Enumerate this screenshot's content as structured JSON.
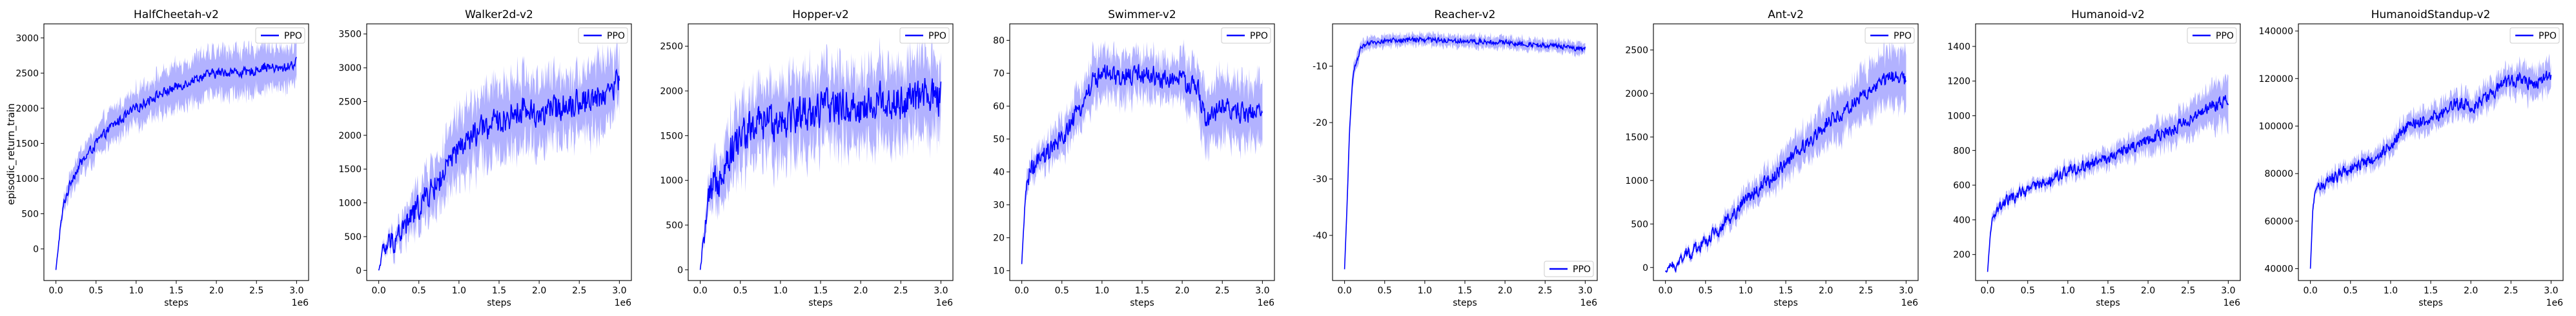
{
  "figure": {
    "ylabel": "episodic_return_train",
    "xlabel": "steps",
    "offset_label": "1e6"
  },
  "chart_data": [
    {
      "type": "line",
      "title": "HalfCheetah-v2",
      "xlabel": "steps",
      "ylabel": "episodic_return_train",
      "xlim": [
        -0.15,
        3.15
      ],
      "ylim": [
        -450,
        3200
      ],
      "xticks": [
        "0.0",
        "0.5",
        "1.0",
        "1.5",
        "2.0",
        "2.5",
        "3.0"
      ],
      "yticks": [
        0,
        500,
        1000,
        1500,
        2000,
        2500,
        3000
      ],
      "legend": "top-right",
      "series": [
        {
          "name": "PPO",
          "color": "#0000ff",
          "x": [
            0,
            0.05,
            0.1,
            0.2,
            0.3,
            0.5,
            0.7,
            1.0,
            1.2,
            1.5,
            1.8,
            2.0,
            2.2,
            2.4,
            2.6,
            2.8,
            3.0
          ],
          "y": [
            -300,
            250,
            650,
            1000,
            1200,
            1500,
            1750,
            2000,
            2150,
            2300,
            2450,
            2500,
            2520,
            2500,
            2600,
            2550,
            2650
          ],
          "band": [
            0,
            60,
            100,
            150,
            180,
            200,
            230,
            250,
            260,
            280,
            300,
            300,
            320,
            300,
            300,
            280,
            250
          ],
          "noise": 90
        }
      ]
    },
    {
      "type": "line",
      "title": "Walker2d-v2",
      "xlabel": "steps",
      "xlim": [
        -0.15,
        3.15
      ],
      "ylim": [
        -150,
        3650
      ],
      "xticks": [
        "0.0",
        "0.5",
        "1.0",
        "1.5",
        "2.0",
        "2.5",
        "3.0"
      ],
      "yticks": [
        0,
        500,
        1000,
        1500,
        2000,
        2500,
        3000,
        3500
      ],
      "legend": "top-right",
      "series": [
        {
          "name": "PPO",
          "color": "#0000ff",
          "x": [
            0,
            0.05,
            0.1,
            0.3,
            0.5,
            0.8,
            1.0,
            1.3,
            1.5,
            1.8,
            2.0,
            2.3,
            2.5,
            2.8,
            3.0
          ],
          "y": [
            0,
            280,
            350,
            600,
            950,
            1400,
            1800,
            2100,
            2200,
            2400,
            2300,
            2450,
            2500,
            2600,
            2800
          ],
          "band": [
            0,
            50,
            80,
            200,
            300,
            400,
            500,
            500,
            500,
            500,
            500,
            450,
            450,
            500,
            400
          ],
          "noise": 260
        }
      ]
    },
    {
      "type": "line",
      "title": "Hopper-v2",
      "xlabel": "steps",
      "xlim": [
        -0.15,
        3.15
      ],
      "ylim": [
        -120,
        2750
      ],
      "xticks": [
        "0.0",
        "0.5",
        "1.0",
        "1.5",
        "2.0",
        "2.5",
        "3.0"
      ],
      "yticks": [
        0,
        500,
        1000,
        1500,
        2000,
        2500
      ],
      "legend": "top-right",
      "series": [
        {
          "name": "PPO",
          "color": "#0000ff",
          "x": [
            0,
            0.05,
            0.1,
            0.2,
            0.3,
            0.5,
            0.8,
            1.0,
            1.3,
            1.5,
            1.8,
            2.0,
            2.3,
            2.5,
            2.8,
            3.0
          ],
          "y": [
            0,
            400,
            700,
            1000,
            1200,
            1500,
            1650,
            1700,
            1750,
            1800,
            1850,
            1800,
            1900,
            1850,
            1950,
            1900
          ],
          "band": [
            0,
            100,
            150,
            250,
            300,
            350,
            400,
            400,
            400,
            400,
            400,
            400,
            400,
            400,
            400,
            400
          ],
          "noise": 280
        }
      ]
    },
    {
      "type": "line",
      "title": "Swimmer-v2",
      "xlabel": "steps",
      "xlim": [
        -0.15,
        3.15
      ],
      "ylim": [
        7,
        85
      ],
      "xticks": [
        "0.0",
        "0.5",
        "1.0",
        "1.5",
        "2.0",
        "2.5",
        "3.0"
      ],
      "yticks": [
        10,
        20,
        30,
        40,
        50,
        60,
        70,
        80
      ],
      "legend": "top-right",
      "series": [
        {
          "name": "PPO",
          "color": "#0000ff",
          "x": [
            0,
            0.05,
            0.1,
            0.3,
            0.5,
            0.7,
            0.9,
            1.0,
            1.2,
            1.5,
            1.8,
            2.0,
            2.2,
            2.3,
            2.5,
            2.7,
            3.0
          ],
          "y": [
            12,
            35,
            40,
            45,
            50,
            58,
            68,
            70,
            68,
            70,
            68,
            68,
            65,
            55,
            60,
            58,
            58
          ],
          "band": [
            0,
            3,
            3,
            4,
            5,
            6,
            7,
            7,
            7,
            6,
            6,
            7,
            8,
            8,
            9,
            9,
            9
          ],
          "noise": 4
        }
      ]
    },
    {
      "type": "line",
      "title": "Reacher-v2",
      "xlabel": "steps",
      "xlim": [
        -0.15,
        3.15
      ],
      "ylim": [
        -48,
        -2.5
      ],
      "xticks": [
        "0.0",
        "0.5",
        "1.0",
        "1.5",
        "2.0",
        "2.5",
        "3.0"
      ],
      "yticks": [
        -40,
        -30,
        -20,
        -10
      ],
      "legend": "bottom-right",
      "series": [
        {
          "name": "PPO",
          "color": "#0000ff",
          "x": [
            0,
            0.03,
            0.06,
            0.1,
            0.15,
            0.2,
            0.3,
            0.5,
            1.0,
            1.5,
            2.0,
            2.5,
            3.0
          ],
          "y": [
            -46,
            -35,
            -22,
            -12,
            -9,
            -7,
            -6,
            -5.5,
            -5.3,
            -5.5,
            -5.8,
            -6.3,
            -7
          ],
          "band": [
            0,
            2,
            2,
            1.5,
            1.2,
            1,
            1,
            1,
            1,
            1,
            1,
            1,
            1
          ],
          "noise": 0.6
        }
      ]
    },
    {
      "type": "line",
      "title": "Ant-v2",
      "xlabel": "steps",
      "xlim": [
        -0.15,
        3.15
      ],
      "ylim": [
        -150,
        2800
      ],
      "xticks": [
        "0.0",
        "0.5",
        "1.0",
        "1.5",
        "2.0",
        "2.5",
        "3.0"
      ],
      "yticks": [
        0,
        500,
        1000,
        1500,
        2000,
        2500
      ],
      "legend": "top-right",
      "series": [
        {
          "name": "PPO",
          "color": "#0000ff",
          "x": [
            0,
            0.2,
            0.5,
            0.8,
            1.0,
            1.3,
            1.5,
            1.8,
            2.0,
            2.3,
            2.5,
            2.8,
            3.0
          ],
          "y": [
            -50,
            100,
            300,
            550,
            800,
            1000,
            1200,
            1450,
            1650,
            1850,
            2000,
            2200,
            2150
          ],
          "band": [
            0,
            40,
            60,
            100,
            120,
            150,
            180,
            200,
            230,
            250,
            280,
            300,
            300
          ],
          "noise": 110
        }
      ]
    },
    {
      "type": "line",
      "title": "Humanoid-v2",
      "xlabel": "steps",
      "xlim": [
        -0.15,
        3.15
      ],
      "ylim": [
        50,
        1530
      ],
      "xticks": [
        "0.0",
        "0.5",
        "1.0",
        "1.5",
        "2.0",
        "2.5",
        "3.0"
      ],
      "yticks": [
        200,
        400,
        600,
        800,
        1000,
        1200,
        1400
      ],
      "legend": "top-right",
      "series": [
        {
          "name": "PPO",
          "color": "#0000ff",
          "x": [
            0,
            0.03,
            0.06,
            0.1,
            0.2,
            0.3,
            0.5,
            0.8,
            1.0,
            1.3,
            1.5,
            1.8,
            2.0,
            2.3,
            2.5,
            2.8,
            3.0
          ],
          "y": [
            100,
            300,
            400,
            450,
            500,
            520,
            570,
            630,
            680,
            720,
            760,
            820,
            860,
            920,
            980,
            1050,
            1100
          ],
          "band": [
            0,
            30,
            30,
            30,
            30,
            30,
            30,
            35,
            40,
            45,
            50,
            60,
            70,
            80,
            90,
            110,
            130
          ],
          "noise": 45
        }
      ]
    },
    {
      "type": "line",
      "title": "HumanoidStandup-v2",
      "xlabel": "steps",
      "xlim": [
        -0.15,
        3.15
      ],
      "ylim": [
        35000,
        143000
      ],
      "xticks": [
        "0.0",
        "0.5",
        "1.0",
        "1.5",
        "2.0",
        "2.5",
        "3.0"
      ],
      "yticks": [
        40000,
        60000,
        80000,
        100000,
        120000,
        140000
      ],
      "legend": "top-right",
      "series": [
        {
          "name": "PPO",
          "color": "#0000ff",
          "x": [
            0,
            0.03,
            0.06,
            0.1,
            0.3,
            0.5,
            0.8,
            1.0,
            1.2,
            1.4,
            1.6,
            1.8,
            2.0,
            2.2,
            2.4,
            2.6,
            2.8,
            3.0
          ],
          "y": [
            40000,
            65000,
            72000,
            75000,
            78000,
            82000,
            86000,
            92000,
            100000,
            102000,
            105000,
            110000,
            108000,
            112000,
            118000,
            120000,
            117000,
            122000
          ],
          "band": [
            0,
            2000,
            2000,
            2500,
            3000,
            3000,
            3500,
            4000,
            4000,
            4500,
            4500,
            5000,
            5000,
            5000,
            5500,
            6000,
            6000,
            6000
          ],
          "noise": 3500
        }
      ]
    }
  ]
}
